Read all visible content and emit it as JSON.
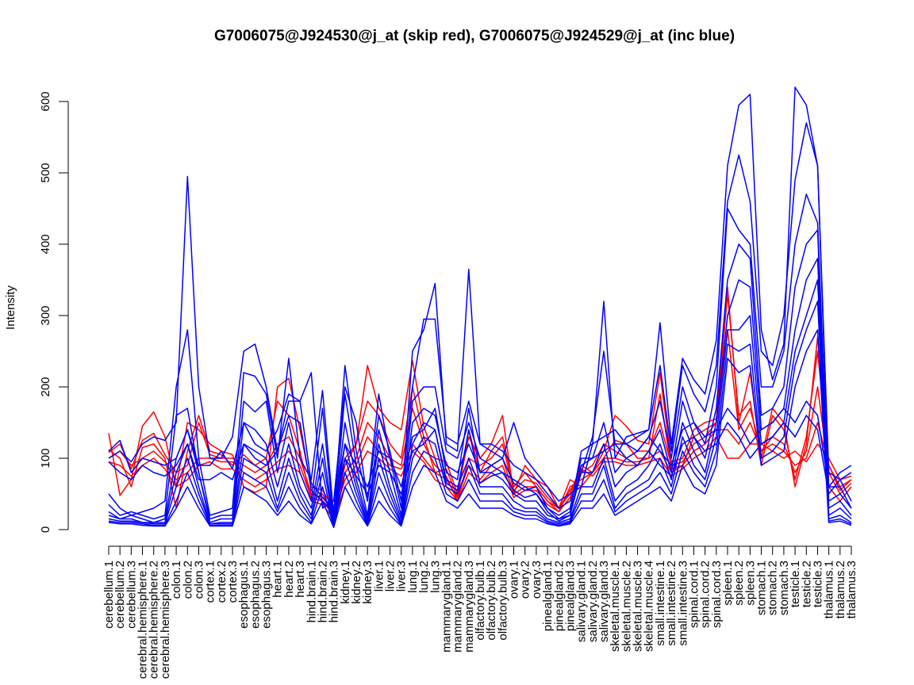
{
  "chart_data": {
    "type": "line",
    "title": "G7006075@J924530@j_at (skip red), G7006075@J924529@j_at (inc blue)",
    "xlabel": "",
    "ylabel": "Intensity",
    "ylim": [
      0,
      620
    ],
    "yticks": [
      0,
      100,
      200,
      300,
      400,
      500,
      600
    ],
    "grid": false,
    "legend": "none",
    "colors": {
      "skip": "#ff0000",
      "inc": "#0000ff",
      "axis": "#000000"
    },
    "categories": [
      "cerebellum.1",
      "cerebellum.2",
      "cerebellum.3",
      "cerebral.hemisphere.1",
      "cerebral.hemisphere.2",
      "cerebral.hemisphere.3",
      "colon.1",
      "colon.2",
      "colon.3",
      "cortex.1",
      "cortex.2",
      "cortex.3",
      "esophagus.1",
      "esophagus.2",
      "esophagus.3",
      "heart.1",
      "heart.2",
      "heart.3",
      "hind.brain.1",
      "hind.brain.2",
      "hind.brain.3",
      "kidney.1",
      "kidney.2",
      "kidney.3",
      "liver.1",
      "liver.2",
      "liver.3",
      "lung.1",
      "lung.2",
      "lung.3",
      "mammarygland.1",
      "mammarygland.2",
      "mammarygland.3",
      "olfactory.bulb.1",
      "olfactory.bulb.2",
      "olfactory.bulb.3",
      "ovary.1",
      "ovary.2",
      "ovary.3",
      "pinealgland.1",
      "pinealgland.2",
      "pinealgland.3",
      "salivary.gland.1",
      "salivary.gland.2",
      "salivary.gland.3",
      "skeletal.muscle.1",
      "skeletal.muscle.2",
      "skeletal.muscle.3",
      "skeletal.muscle.4",
      "small.intestine.1",
      "small.intestine.2",
      "small.intestine.3",
      "spinal.cord.1",
      "spinal.cord.2",
      "spinal.cord.3",
      "spleen.1",
      "spleen.2",
      "spleen.3",
      "stomach.1",
      "stomach.2",
      "stomach.3",
      "testicle.1",
      "testicle.2",
      "testicle.3",
      "thalamus.1",
      "thalamus.2",
      "thalamus.3"
    ],
    "series": [
      {
        "group": "skip",
        "values": [
          135,
          48,
          70,
          145,
          165,
          130,
          60,
          150,
          140,
          120,
          110,
          105,
          60,
          52,
          60,
          200,
          212,
          140,
          60,
          55,
          30,
          100,
          120,
          230,
          170,
          150,
          140,
          237,
          145,
          100,
          95,
          50,
          130,
          100,
          120,
          160,
          50,
          90,
          70,
          60,
          30,
          70,
          60,
          80,
          110,
          160,
          145,
          125,
          120,
          220,
          95,
          100,
          140,
          150,
          155,
          340,
          150,
          220,
          100,
          170,
          150,
          60,
          120,
          270,
          60,
          40,
          60
        ]
      },
      {
        "group": "skip",
        "values": [
          112,
          100,
          60,
          115,
          120,
          100,
          30,
          110,
          160,
          110,
          105,
          90,
          105,
          90,
          100,
          180,
          160,
          110,
          40,
          50,
          20,
          90,
          120,
          180,
          160,
          120,
          100,
          200,
          130,
          80,
          85,
          45,
          140,
          80,
          110,
          130,
          60,
          80,
          60,
          40,
          25,
          60,
          70,
          80,
          100,
          125,
          120,
          100,
          100,
          190,
          85,
          90,
          130,
          140,
          150,
          330,
          160,
          180,
          90,
          160,
          140,
          70,
          130,
          250,
          90,
          55,
          70
        ]
      },
      {
        "group": "skip",
        "values": [
          108,
          120,
          85,
          125,
          135,
          105,
          80,
          90,
          150,
          105,
          100,
          100,
          90,
          80,
          90,
          120,
          130,
          100,
          50,
          45,
          25,
          80,
          100,
          150,
          130,
          100,
          90,
          170,
          120,
          90,
          75,
          40,
          100,
          90,
          100,
          120,
          55,
          70,
          65,
          45,
          30,
          55,
          80,
          90,
          120,
          110,
          100,
          110,
          110,
          150,
          90,
          95,
          120,
          130,
          150,
          280,
          140,
          170,
          110,
          130,
          120,
          80,
          110,
          200,
          80,
          50,
          65
        ]
      },
      {
        "group": "skip",
        "values": [
          100,
          110,
          90,
          100,
          110,
          95,
          70,
          80,
          100,
          100,
          95,
          95,
          80,
          70,
          80,
          95,
          110,
          90,
          45,
          40,
          20,
          70,
          90,
          130,
          110,
          90,
          85,
          120,
          100,
          80,
          70,
          45,
          90,
          70,
          90,
          100,
          50,
          60,
          60,
          40,
          30,
          50,
          90,
          80,
          100,
          100,
          95,
          95,
          100,
          110,
          80,
          90,
          110,
          120,
          140,
          140,
          120,
          150,
          110,
          120,
          110,
          90,
          100,
          150,
          90,
          60,
          70
        ]
      },
      {
        "group": "skip",
        "values": [
          95,
          90,
          75,
          90,
          100,
          85,
          60,
          70,
          90,
          95,
          85,
          85,
          70,
          60,
          70,
          85,
          90,
          80,
          40,
          35,
          15,
          60,
          80,
          110,
          100,
          85,
          75,
          110,
          95,
          70,
          60,
          40,
          80,
          65,
          80,
          90,
          45,
          55,
          55,
          35,
          25,
          45,
          85,
          75,
          95,
          95,
          90,
          90,
          95,
          100,
          75,
          85,
          100,
          110,
          130,
          100,
          100,
          120,
          120,
          110,
          100,
          110,
          95,
          120,
          100,
          70,
          75
        ]
      },
      {
        "group": "inc",
        "values": [
          100,
          110,
          95,
          120,
          130,
          125,
          150,
          495,
          200,
          100,
          100,
          130,
          250,
          260,
          200,
          110,
          180,
          180,
          220,
          30,
          40,
          200,
          150,
          40,
          190,
          100,
          30,
          250,
          280,
          345,
          120,
          110,
          365,
          120,
          110,
          100,
          150,
          100,
          80,
          60,
          40,
          50,
          60,
          120,
          320,
          100,
          130,
          135,
          140,
          290,
          120,
          240,
          210,
          190,
          265,
          510,
          595,
          610,
          280,
          210,
          260,
          620,
          595,
          510,
          60,
          60,
          30
        ]
      },
      {
        "group": "inc",
        "values": [
          50,
          30,
          20,
          25,
          30,
          40,
          200,
          280,
          100,
          20,
          25,
          30,
          220,
          215,
          190,
          100,
          240,
          100,
          70,
          195,
          20,
          230,
          110,
          40,
          160,
          110,
          40,
          200,
          295,
          295,
          130,
          120,
          180,
          120,
          120,
          110,
          90,
          80,
          70,
          50,
          30,
          40,
          80,
          130,
          250,
          120,
          120,
          130,
          140,
          230,
          110,
          230,
          190,
          165,
          230,
          460,
          525,
          460,
          250,
          230,
          300,
          490,
          570,
          510,
          80,
          70,
          40
        ]
      },
      {
        "group": "inc",
        "values": [
          35,
          20,
          25,
          20,
          15,
          20,
          160,
          170,
          80,
          15,
          20,
          20,
          180,
          165,
          180,
          80,
          150,
          80,
          40,
          170,
          10,
          190,
          90,
          20,
          140,
          80,
          20,
          180,
          200,
          200,
          110,
          100,
          150,
          100,
          90,
          80,
          70,
          60,
          50,
          30,
          20,
          30,
          100,
          100,
          150,
          80,
          100,
          110,
          130,
          180,
          100,
          200,
          150,
          120,
          200,
          450,
          420,
          400,
          200,
          200,
          250,
          400,
          470,
          430,
          40,
          50,
          30
        ]
      },
      {
        "group": "inc",
        "values": [
          25,
          15,
          20,
          15,
          10,
          15,
          100,
          140,
          80,
          10,
          15,
          15,
          150,
          140,
          120,
          60,
          120,
          60,
          30,
          120,
          10,
          150,
          70,
          15,
          120,
          60,
          15,
          150,
          170,
          160,
          90,
          80,
          120,
          80,
          80,
          70,
          50,
          40,
          40,
          20,
          15,
          20,
          80,
          80,
          120,
          60,
          80,
          90,
          110,
          140,
          80,
          180,
          130,
          100,
          170,
          350,
          400,
          380,
          160,
          170,
          200,
          340,
          400,
          420,
          30,
          40,
          20
        ]
      },
      {
        "group": "inc",
        "values": [
          20,
          15,
          15,
          10,
          10,
          10,
          80,
          120,
          60,
          8,
          10,
          10,
          120,
          110,
          100,
          40,
          100,
          50,
          20,
          100,
          8,
          120,
          60,
          10,
          100,
          50,
          10,
          120,
          150,
          140,
          70,
          60,
          100,
          60,
          60,
          60,
          40,
          30,
          30,
          15,
          10,
          15,
          60,
          60,
          100,
          40,
          60,
          70,
          90,
          120,
          70,
          150,
          110,
          80,
          150,
          300,
          350,
          340,
          140,
          150,
          170,
          280,
          350,
          380,
          20,
          30,
          15
        ]
      },
      {
        "group": "inc",
        "values": [
          15,
          12,
          12,
          10,
          8,
          8,
          60,
          100,
          50,
          8,
          8,
          8,
          100,
          90,
          80,
          30,
          80,
          40,
          15,
          80,
          5,
          100,
          50,
          8,
          80,
          40,
          8,
          100,
          130,
          120,
          60,
          50,
          90,
          50,
          50,
          50,
          30,
          25,
          25,
          12,
          8,
          12,
          50,
          50,
          90,
          30,
          50,
          60,
          70,
          100,
          60,
          130,
          90,
          70,
          130,
          280,
          280,
          300,
          120,
          130,
          150,
          250,
          300,
          350,
          15,
          20,
          10
        ]
      },
      {
        "group": "inc",
        "values": [
          12,
          10,
          10,
          8,
          6,
          6,
          40,
          80,
          40,
          6,
          6,
          6,
          80,
          70,
          60,
          25,
          60,
          30,
          10,
          60,
          4,
          80,
          40,
          6,
          60,
          30,
          6,
          80,
          110,
          100,
          50,
          40,
          70,
          40,
          40,
          40,
          25,
          20,
          20,
          10,
          6,
          10,
          40,
          40,
          70,
          25,
          40,
          50,
          60,
          80,
          50,
          110,
          80,
          60,
          110,
          260,
          250,
          260,
          100,
          110,
          130,
          230,
          280,
          320,
          12,
          15,
          8
        ]
      },
      {
        "group": "inc",
        "values": [
          10,
          8,
          8,
          6,
          5,
          5,
          30,
          60,
          30,
          5,
          5,
          5,
          60,
          50,
          40,
          20,
          40,
          20,
          8,
          40,
          3,
          60,
          30,
          5,
          40,
          20,
          5,
          60,
          90,
          80,
          40,
          30,
          50,
          30,
          30,
          30,
          20,
          15,
          15,
          8,
          5,
          8,
          30,
          30,
          50,
          20,
          30,
          40,
          50,
          60,
          40,
          90,
          60,
          50,
          90,
          240,
          220,
          230,
          90,
          100,
          110,
          200,
          250,
          280,
          10,
          12,
          6
        ]
      },
      {
        "group": "inc",
        "values": [
          110,
          125,
          80,
          100,
          95,
          90,
          100,
          140,
          90,
          90,
          110,
          85,
          150,
          120,
          110,
          140,
          190,
          180,
          65,
          45,
          30,
          120,
          90,
          60,
          110,
          100,
          60,
          130,
          140,
          170,
          80,
          70,
          170,
          80,
          90,
          100,
          65,
          55,
          60,
          30,
          15,
          25,
          110,
          120,
          130,
          140,
          120,
          110,
          130,
          110,
          90,
          140,
          150,
          130,
          140,
          170,
          150,
          120,
          140,
          150,
          170,
          150,
          180,
          160,
          60,
          80,
          90
        ]
      },
      {
        "group": "inc",
        "values": [
          95,
          80,
          70,
          90,
          80,
          75,
          90,
          120,
          70,
          70,
          80,
          70,
          120,
          100,
          90,
          110,
          160,
          150,
          55,
          40,
          25,
          100,
          75,
          50,
          90,
          80,
          50,
          110,
          120,
          140,
          65,
          55,
          140,
          65,
          75,
          80,
          55,
          45,
          50,
          25,
          12,
          20,
          90,
          100,
          110,
          120,
          100,
          90,
          110,
          90,
          75,
          120,
          130,
          110,
          120,
          150,
          130,
          100,
          120,
          130,
          150,
          130,
          160,
          140,
          50,
          70,
          80
        ]
      }
    ]
  }
}
